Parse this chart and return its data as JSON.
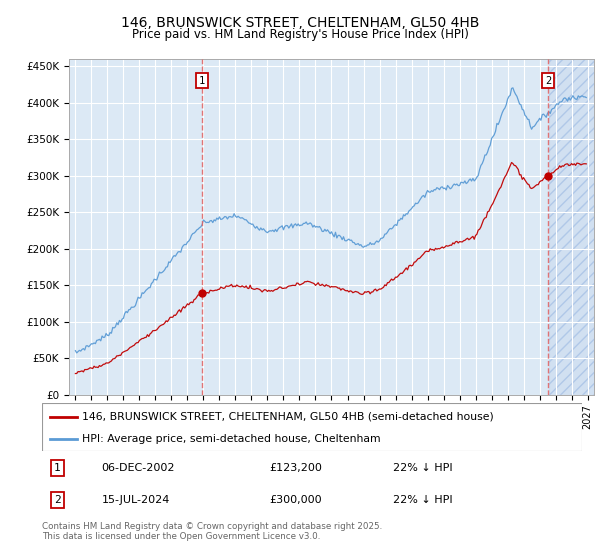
{
  "title": "146, BRUNSWICK STREET, CHELTENHAM, GL50 4HB",
  "subtitle": "Price paid vs. HM Land Registry's House Price Index (HPI)",
  "background_color": "#dce9f5",
  "ylim": [
    0,
    460000
  ],
  "yticks": [
    0,
    50000,
    100000,
    150000,
    200000,
    250000,
    300000,
    350000,
    400000,
    450000
  ],
  "ytick_labels": [
    "£0",
    "£50K",
    "£100K",
    "£150K",
    "£200K",
    "£250K",
    "£300K",
    "£350K",
    "£400K",
    "£450K"
  ],
  "hpi_color": "#5b9bd5",
  "price_color": "#c00000",
  "vline_color": "#e06060",
  "purchase1_year": 2002.92,
  "purchase1_price": 123200,
  "purchase2_year": 2024.54,
  "purchase2_price": 300000,
  "legend_label1": "146, BRUNSWICK STREET, CHELTENHAM, GL50 4HB (semi-detached house)",
  "legend_label2": "HPI: Average price, semi-detached house, Cheltenham",
  "ann1_label": "1",
  "ann2_label": "2",
  "table_row1": [
    "1",
    "06-DEC-2002",
    "£123,200",
    "22% ↓ HPI"
  ],
  "table_row2": [
    "2",
    "15-JUL-2024",
    "£300,000",
    "22% ↓ HPI"
  ],
  "footer": "Contains HM Land Registry data © Crown copyright and database right 2025.\nThis data is licensed under the Open Government Licence v3.0."
}
